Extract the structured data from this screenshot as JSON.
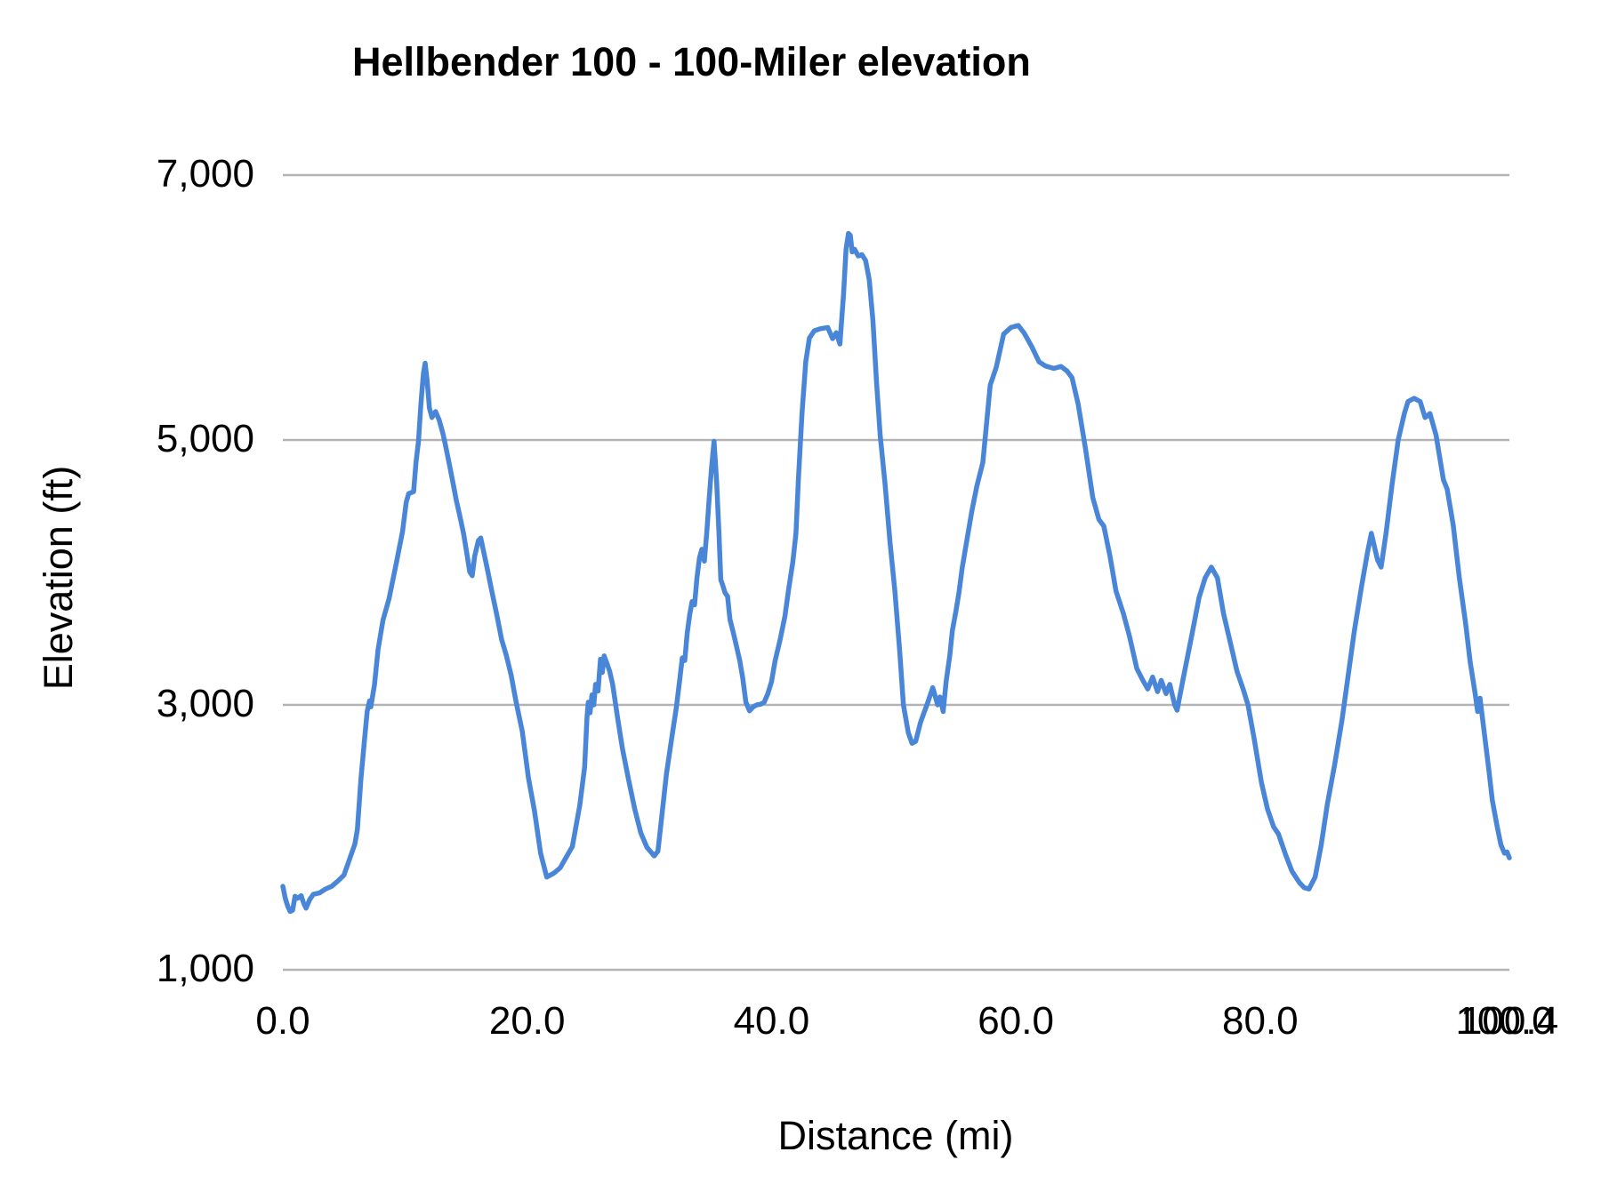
{
  "chart_data": {
    "type": "line",
    "title": "Hellbender 100 - 100-Miler elevation",
    "xlabel": "Distance (mi)",
    "ylabel": "Elevation (ft)",
    "xlim": [
      0,
      100.4
    ],
    "ylim": [
      1000,
      7000
    ],
    "grid": "horizontal gridlines only",
    "legend_position": "none",
    "line_color": "#4a86d8",
    "gridline_color": "#b3b3b3",
    "text_color": "#000000",
    "background_color": "#ffffff",
    "y_ticks": [
      {
        "value": 1000,
        "label": "1,000"
      },
      {
        "value": 3000,
        "label": "3,000"
      },
      {
        "value": 5000,
        "label": "5,000"
      },
      {
        "value": 7000,
        "label": "7,000"
      }
    ],
    "x_ticks": [
      {
        "value": 0,
        "label": "0.0"
      },
      {
        "value": 20,
        "label": "20.0"
      },
      {
        "value": 40,
        "label": "40.0"
      },
      {
        "value": 60,
        "label": "60.0"
      },
      {
        "value": 80,
        "label": "80.0"
      },
      {
        "value": 100,
        "label": "100.0"
      },
      {
        "value": 100.4,
        "label": "100.4"
      }
    ],
    "series": [
      {
        "name": "Elevation (ft)",
        "points": [
          [
            0.0,
            1630
          ],
          [
            0.2,
            1540
          ],
          [
            0.4,
            1480
          ],
          [
            0.6,
            1440
          ],
          [
            0.8,
            1450
          ],
          [
            1.0,
            1555
          ],
          [
            1.2,
            1540
          ],
          [
            1.5,
            1560
          ],
          [
            1.7,
            1505
          ],
          [
            1.9,
            1465
          ],
          [
            2.2,
            1530
          ],
          [
            2.5,
            1570
          ],
          [
            3.0,
            1580
          ],
          [
            3.5,
            1610
          ],
          [
            4.0,
            1630
          ],
          [
            4.5,
            1670
          ],
          [
            5.0,
            1715
          ],
          [
            5.5,
            1845
          ],
          [
            5.9,
            1950
          ],
          [
            6.1,
            2060
          ],
          [
            6.4,
            2450
          ],
          [
            6.7,
            2750
          ],
          [
            6.9,
            2950
          ],
          [
            7.1,
            3030
          ],
          [
            7.2,
            2985
          ],
          [
            7.5,
            3150
          ],
          [
            7.8,
            3420
          ],
          [
            8.2,
            3640
          ],
          [
            8.7,
            3805
          ],
          [
            9.3,
            4075
          ],
          [
            9.8,
            4310
          ],
          [
            10.1,
            4530
          ],
          [
            10.3,
            4595
          ],
          [
            10.7,
            4610
          ],
          [
            10.9,
            4830
          ],
          [
            11.1,
            4990
          ],
          [
            11.3,
            5270
          ],
          [
            11.5,
            5500
          ],
          [
            11.65,
            5580
          ],
          [
            11.8,
            5455
          ],
          [
            12.0,
            5240
          ],
          [
            12.2,
            5170
          ],
          [
            12.5,
            5215
          ],
          [
            12.8,
            5150
          ],
          [
            13.1,
            5050
          ],
          [
            13.3,
            4965
          ],
          [
            13.6,
            4830
          ],
          [
            13.9,
            4690
          ],
          [
            14.2,
            4545
          ],
          [
            14.5,
            4420
          ],
          [
            14.8,
            4290
          ],
          [
            15.1,
            4120
          ],
          [
            15.3,
            4005
          ],
          [
            15.5,
            3975
          ],
          [
            15.7,
            4120
          ],
          [
            16.0,
            4240
          ],
          [
            16.2,
            4260
          ],
          [
            16.5,
            4130
          ],
          [
            16.8,
            4000
          ],
          [
            17.1,
            3860
          ],
          [
            17.5,
            3685
          ],
          [
            17.9,
            3495
          ],
          [
            18.3,
            3370
          ],
          [
            18.7,
            3220
          ],
          [
            19.1,
            3020
          ],
          [
            19.6,
            2800
          ],
          [
            20.1,
            2450
          ],
          [
            20.6,
            2200
          ],
          [
            21.1,
            1880
          ],
          [
            21.6,
            1700
          ],
          [
            22.2,
            1730
          ],
          [
            22.7,
            1770
          ],
          [
            23.1,
            1835
          ],
          [
            23.7,
            1930
          ],
          [
            24.3,
            2240
          ],
          [
            24.7,
            2530
          ],
          [
            24.9,
            2910
          ],
          [
            25.0,
            3020
          ],
          [
            25.15,
            2940
          ],
          [
            25.3,
            3075
          ],
          [
            25.45,
            3000
          ],
          [
            25.6,
            3155
          ],
          [
            25.8,
            3105
          ],
          [
            26.0,
            3345
          ],
          [
            26.15,
            3245
          ],
          [
            26.3,
            3370
          ],
          [
            26.5,
            3320
          ],
          [
            26.75,
            3255
          ],
          [
            27.0,
            3155
          ],
          [
            27.4,
            2905
          ],
          [
            27.8,
            2670
          ],
          [
            28.3,
            2435
          ],
          [
            28.8,
            2215
          ],
          [
            29.3,
            2035
          ],
          [
            29.8,
            1925
          ],
          [
            30.4,
            1860
          ],
          [
            30.7,
            1895
          ],
          [
            31.0,
            2145
          ],
          [
            31.4,
            2480
          ],
          [
            31.8,
            2730
          ],
          [
            32.2,
            2975
          ],
          [
            32.5,
            3200
          ],
          [
            32.7,
            3355
          ],
          [
            32.9,
            3335
          ],
          [
            33.1,
            3540
          ],
          [
            33.3,
            3680
          ],
          [
            33.5,
            3780
          ],
          [
            33.7,
            3755
          ],
          [
            33.9,
            3960
          ],
          [
            34.1,
            4110
          ],
          [
            34.3,
            4175
          ],
          [
            34.5,
            4085
          ],
          [
            34.7,
            4300
          ],
          [
            34.9,
            4565
          ],
          [
            35.1,
            4800
          ],
          [
            35.3,
            4990
          ],
          [
            35.5,
            4700
          ],
          [
            35.7,
            4300
          ],
          [
            35.85,
            3945
          ],
          [
            36.0,
            3905
          ],
          [
            36.2,
            3845
          ],
          [
            36.4,
            3820
          ],
          [
            36.6,
            3645
          ],
          [
            36.85,
            3555
          ],
          [
            37.1,
            3455
          ],
          [
            37.4,
            3335
          ],
          [
            37.65,
            3200
          ],
          [
            37.9,
            3020
          ],
          [
            38.2,
            2955
          ],
          [
            38.5,
            2985
          ],
          [
            38.8,
            3000
          ],
          [
            39.1,
            3005
          ],
          [
            39.4,
            3020
          ],
          [
            39.7,
            3085
          ],
          [
            40.0,
            3175
          ],
          [
            40.3,
            3335
          ],
          [
            40.7,
            3490
          ],
          [
            41.1,
            3670
          ],
          [
            41.4,
            3870
          ],
          [
            41.75,
            4080
          ],
          [
            42.0,
            4295
          ],
          [
            42.2,
            4700
          ],
          [
            42.5,
            5200
          ],
          [
            42.8,
            5590
          ],
          [
            43.1,
            5770
          ],
          [
            43.5,
            5825
          ],
          [
            44.0,
            5840
          ],
          [
            44.6,
            5850
          ],
          [
            45.0,
            5765
          ],
          [
            45.3,
            5810
          ],
          [
            45.6,
            5725
          ],
          [
            45.9,
            6100
          ],
          [
            46.1,
            6440
          ],
          [
            46.3,
            6560
          ],
          [
            46.45,
            6545
          ],
          [
            46.6,
            6420
          ],
          [
            46.8,
            6440
          ],
          [
            47.1,
            6390
          ],
          [
            47.4,
            6400
          ],
          [
            47.7,
            6355
          ],
          [
            48.0,
            6210
          ],
          [
            48.3,
            5905
          ],
          [
            48.6,
            5435
          ],
          [
            48.9,
            5035
          ],
          [
            49.3,
            4665
          ],
          [
            49.7,
            4230
          ],
          [
            50.1,
            3860
          ],
          [
            50.5,
            3400
          ],
          [
            50.8,
            3000
          ],
          [
            51.2,
            2790
          ],
          [
            51.5,
            2710
          ],
          [
            51.8,
            2725
          ],
          [
            52.2,
            2870
          ],
          [
            52.8,
            3020
          ],
          [
            53.2,
            3130
          ],
          [
            53.6,
            3000
          ],
          [
            53.8,
            3060
          ],
          [
            54.05,
            2950
          ],
          [
            54.3,
            3180
          ],
          [
            54.6,
            3375
          ],
          [
            54.8,
            3560
          ],
          [
            55.1,
            3710
          ],
          [
            55.35,
            3850
          ],
          [
            55.6,
            4030
          ],
          [
            56.0,
            4250
          ],
          [
            56.4,
            4465
          ],
          [
            56.8,
            4650
          ],
          [
            57.3,
            4830
          ],
          [
            57.9,
            5415
          ],
          [
            58.4,
            5550
          ],
          [
            59.0,
            5800
          ],
          [
            59.6,
            5850
          ],
          [
            60.2,
            5865
          ],
          [
            60.7,
            5805
          ],
          [
            61.3,
            5705
          ],
          [
            61.9,
            5590
          ],
          [
            62.4,
            5560
          ],
          [
            63.1,
            5540
          ],
          [
            63.7,
            5555
          ],
          [
            64.2,
            5520
          ],
          [
            64.6,
            5470
          ],
          [
            65.1,
            5270
          ],
          [
            65.7,
            4935
          ],
          [
            66.3,
            4565
          ],
          [
            66.8,
            4400
          ],
          [
            67.2,
            4350
          ],
          [
            67.7,
            4125
          ],
          [
            68.2,
            3860
          ],
          [
            68.8,
            3690
          ],
          [
            69.3,
            3520
          ],
          [
            69.9,
            3275
          ],
          [
            70.4,
            3185
          ],
          [
            70.8,
            3120
          ],
          [
            71.2,
            3210
          ],
          [
            71.6,
            3100
          ],
          [
            71.9,
            3185
          ],
          [
            72.3,
            3085
          ],
          [
            72.6,
            3155
          ],
          [
            73.0,
            3000
          ],
          [
            73.2,
            2960
          ],
          [
            73.7,
            3200
          ],
          [
            74.4,
            3525
          ],
          [
            75.0,
            3810
          ],
          [
            75.5,
            3960
          ],
          [
            76.0,
            4040
          ],
          [
            76.5,
            3960
          ],
          [
            77.0,
            3690
          ],
          [
            77.6,
            3455
          ],
          [
            78.1,
            3255
          ],
          [
            78.6,
            3120
          ],
          [
            79.0,
            3000
          ],
          [
            79.5,
            2750
          ],
          [
            80.1,
            2415
          ],
          [
            80.6,
            2215
          ],
          [
            81.1,
            2080
          ],
          [
            81.5,
            2025
          ],
          [
            82.1,
            1865
          ],
          [
            82.6,
            1745
          ],
          [
            83.2,
            1660
          ],
          [
            83.6,
            1620
          ],
          [
            84.0,
            1610
          ],
          [
            84.5,
            1700
          ],
          [
            85.0,
            1945
          ],
          [
            85.5,
            2250
          ],
          [
            86.1,
            2550
          ],
          [
            86.7,
            2885
          ],
          [
            87.2,
            3220
          ],
          [
            87.7,
            3555
          ],
          [
            88.3,
            3895
          ],
          [
            88.8,
            4160
          ],
          [
            89.1,
            4295
          ],
          [
            89.6,
            4095
          ],
          [
            89.9,
            4040
          ],
          [
            90.3,
            4295
          ],
          [
            90.8,
            4665
          ],
          [
            91.3,
            5000
          ],
          [
            91.8,
            5200
          ],
          [
            92.1,
            5290
          ],
          [
            92.6,
            5315
          ],
          [
            93.1,
            5290
          ],
          [
            93.5,
            5170
          ],
          [
            93.9,
            5200
          ],
          [
            94.4,
            5035
          ],
          [
            95.0,
            4700
          ],
          [
            95.3,
            4630
          ],
          [
            95.8,
            4360
          ],
          [
            96.3,
            3960
          ],
          [
            96.8,
            3625
          ],
          [
            97.2,
            3320
          ],
          [
            97.6,
            3085
          ],
          [
            97.8,
            2950
          ],
          [
            98.0,
            3050
          ],
          [
            98.3,
            2820
          ],
          [
            98.7,
            2520
          ],
          [
            99.0,
            2280
          ],
          [
            99.4,
            2080
          ],
          [
            99.7,
            1945
          ],
          [
            100.0,
            1880
          ],
          [
            100.2,
            1890
          ],
          [
            100.4,
            1845
          ]
        ]
      }
    ]
  }
}
